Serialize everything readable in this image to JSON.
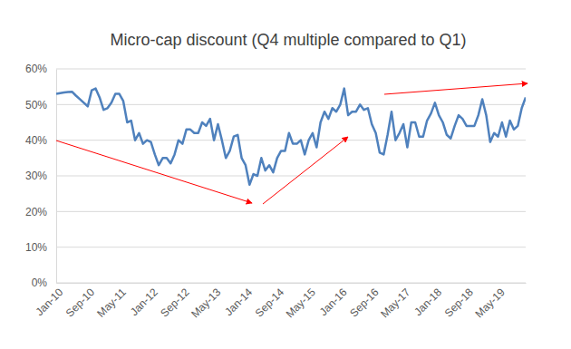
{
  "chart_data": {
    "type": "line",
    "title": "Micro-cap discount (Q4 multiple compared to Q1)",
    "categories": [
      "Jan-10",
      null,
      null,
      null,
      null,
      null,
      null,
      null,
      "Sep-10",
      null,
      null,
      null,
      null,
      null,
      null,
      null,
      "May-11",
      null,
      null,
      null,
      null,
      null,
      null,
      null,
      "Jan-12",
      null,
      null,
      null,
      null,
      null,
      null,
      null,
      "Sep-12",
      null,
      null,
      null,
      null,
      null,
      null,
      null,
      "May-13",
      null,
      null,
      null,
      null,
      null,
      null,
      null,
      "Jan-14",
      null,
      null,
      null,
      null,
      null,
      null,
      null,
      "Sep-14",
      null,
      null,
      null,
      null,
      null,
      null,
      null,
      "May-15",
      null,
      null,
      null,
      null,
      null,
      null,
      null,
      "Jan-16",
      null,
      null,
      null,
      null,
      null,
      null,
      null,
      "Sep-16",
      null,
      null,
      null,
      null,
      null,
      null,
      null,
      "May-17",
      null,
      null,
      null,
      null,
      null,
      null,
      null,
      "Jan-18",
      null,
      null,
      null,
      null,
      null,
      null,
      null,
      "Sep-18",
      null,
      null,
      null,
      null,
      null,
      null,
      null,
      "May-19",
      null,
      null,
      null,
      null,
      null,
      null,
      null
    ],
    "values": [
      53,
      53.2,
      53.4,
      53.5,
      53.6,
      52.5,
      51.5,
      50.5,
      49.5,
      54,
      54.5,
      52,
      48.5,
      49,
      50.5,
      53,
      53,
      51,
      45,
      45.5,
      40,
      42,
      39,
      40,
      39.5,
      36,
      33,
      35,
      35,
      33.5,
      36,
      40,
      39,
      43,
      43,
      42,
      42,
      45,
      44,
      46,
      40,
      44.5,
      40,
      35,
      37,
      41,
      41.5,
      35,
      33,
      27.5,
      30.5,
      30,
      35,
      31.5,
      33,
      31,
      35,
      37,
      37,
      42,
      39,
      39,
      40,
      36,
      40,
      42,
      38,
      45,
      48,
      46,
      49,
      48,
      50,
      54.5,
      47,
      48,
      48,
      50,
      48.5,
      49,
      44.5,
      42,
      36.5,
      36,
      41.5,
      48,
      40,
      42,
      44.5,
      38,
      45,
      45,
      41,
      41,
      45.5,
      47.5,
      50.5,
      47,
      45,
      41.5,
      40.5,
      44,
      47,
      46,
      44,
      44,
      44,
      47,
      51.5,
      47,
      39.5,
      42,
      41,
      45,
      41,
      45.5,
      43,
      44,
      49,
      52
    ],
    "color": "#4f81bd",
    "ylim": [
      0,
      60
    ],
    "yticks": [
      {
        "value": 0,
        "label": "0%"
      },
      {
        "value": 10,
        "label": "10%"
      },
      {
        "value": 20,
        "label": "20%"
      },
      {
        "value": 30,
        "label": "30%"
      },
      {
        "value": 40,
        "label": "40%"
      },
      {
        "value": 50,
        "label": "50%"
      },
      {
        "value": 60,
        "label": "60%"
      }
    ],
    "grid": true
  }
}
